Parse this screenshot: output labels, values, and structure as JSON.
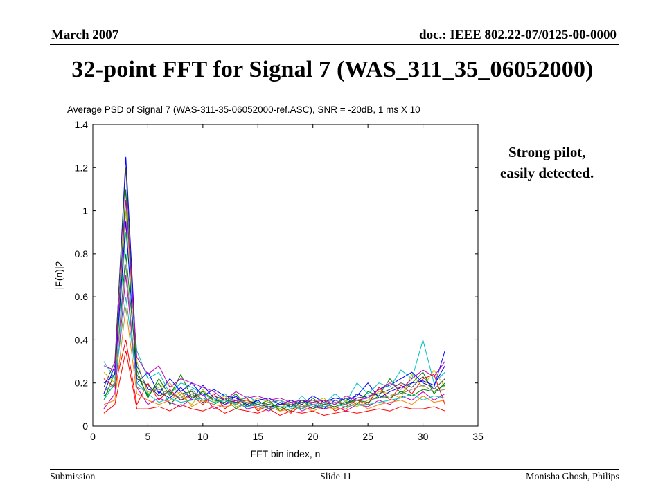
{
  "header": {
    "date": "March 2007",
    "doc": "doc.: IEEE 802.22-07/0125-00-0000"
  },
  "slide_title": "32-point FFT for Signal 7 (WAS_311_35_06052000)",
  "notes": [
    "Strong pilot,",
    "easily detected."
  ],
  "footer": {
    "left": "Submission",
    "center": "Slide 11",
    "right": "Monisha Ghosh, Philips"
  },
  "chart_data": {
    "type": "line",
    "title": "Average PSD of Signal 7 (WAS-311-35-06052000-ref.ASC), SNR = -20dB, 1 ms X 10",
    "xlabel": "FFT bin index, n",
    "ylabel": "|F(n)|2",
    "xlim": [
      0,
      35
    ],
    "ylim": [
      0,
      1.4
    ],
    "xticks": [
      "0",
      "5",
      "10",
      "15",
      "20",
      "25",
      "30",
      "35"
    ],
    "yticks": [
      "0",
      "0.2",
      "0.4",
      "0.6",
      "0.8",
      "1",
      "1.2",
      "1.4"
    ],
    "grid": false,
    "x": [
      1,
      2,
      3,
      4,
      5,
      6,
      7,
      8,
      9,
      10,
      11,
      12,
      13,
      14,
      15,
      16,
      17,
      18,
      19,
      20,
      21,
      22,
      23,
      24,
      25,
      26,
      27,
      28,
      29,
      30,
      31,
      32
    ],
    "series": [
      {
        "color": "#0000ff",
        "values": [
          0.15,
          0.28,
          1.25,
          0.28,
          0.17,
          0.16,
          0.13,
          0.18,
          0.12,
          0.19,
          0.13,
          0.1,
          0.14,
          0.09,
          0.12,
          0.08,
          0.11,
          0.09,
          0.12,
          0.1,
          0.08,
          0.12,
          0.1,
          0.15,
          0.13,
          0.17,
          0.19,
          0.22,
          0.25,
          0.2,
          0.18,
          0.35
        ]
      },
      {
        "color": "#008000",
        "values": [
          0.12,
          0.25,
          1.1,
          0.24,
          0.14,
          0.2,
          0.1,
          0.15,
          0.16,
          0.12,
          0.1,
          0.13,
          0.08,
          0.11,
          0.1,
          0.12,
          0.07,
          0.1,
          0.08,
          0.13,
          0.09,
          0.1,
          0.13,
          0.1,
          0.16,
          0.14,
          0.22,
          0.15,
          0.2,
          0.25,
          0.15,
          0.2
        ]
      },
      {
        "color": "#ff0000",
        "values": [
          0.22,
          0.18,
          0.4,
          0.1,
          0.2,
          0.12,
          0.17,
          0.12,
          0.14,
          0.1,
          0.15,
          0.08,
          0.12,
          0.13,
          0.07,
          0.1,
          0.09,
          0.06,
          0.1,
          0.08,
          0.12,
          0.07,
          0.09,
          0.12,
          0.1,
          0.18,
          0.12,
          0.19,
          0.15,
          0.22,
          0.24,
          0.1
        ]
      },
      {
        "color": "#00bfbf",
        "values": [
          0.3,
          0.22,
          0.9,
          0.35,
          0.22,
          0.25,
          0.15,
          0.2,
          0.18,
          0.15,
          0.12,
          0.15,
          0.1,
          0.14,
          0.11,
          0.1,
          0.12,
          0.08,
          0.14,
          0.09,
          0.1,
          0.15,
          0.11,
          0.2,
          0.15,
          0.2,
          0.18,
          0.26,
          0.22,
          0.4,
          0.2,
          0.25
        ]
      },
      {
        "color": "#bf00bf",
        "values": [
          0.08,
          0.15,
          0.7,
          0.18,
          0.1,
          0.13,
          0.11,
          0.09,
          0.13,
          0.15,
          0.08,
          0.1,
          0.12,
          0.08,
          0.09,
          0.07,
          0.1,
          0.11,
          0.07,
          0.09,
          0.08,
          0.09,
          0.07,
          0.1,
          0.09,
          0.12,
          0.1,
          0.14,
          0.12,
          0.16,
          0.12,
          0.15
        ]
      },
      {
        "color": "#bfbf00",
        "values": [
          0.25,
          0.2,
          1.0,
          0.3,
          0.15,
          0.18,
          0.2,
          0.14,
          0.1,
          0.17,
          0.11,
          0.14,
          0.09,
          0.1,
          0.13,
          0.11,
          0.08,
          0.12,
          0.09,
          0.11,
          0.13,
          0.08,
          0.12,
          0.09,
          0.12,
          0.16,
          0.15,
          0.13,
          0.24,
          0.18,
          0.26,
          0.18
        ]
      },
      {
        "color": "#404040",
        "values": [
          0.18,
          0.3,
          1.2,
          0.22,
          0.19,
          0.14,
          0.16,
          0.12,
          0.15,
          0.11,
          0.14,
          0.12,
          0.11,
          0.12,
          0.1,
          0.09,
          0.1,
          0.1,
          0.11,
          0.12,
          0.1,
          0.11,
          0.1,
          0.13,
          0.14,
          0.15,
          0.17,
          0.2,
          0.18,
          0.23,
          0.17,
          0.22
        ]
      },
      {
        "color": "#ff8000",
        "values": [
          0.1,
          0.12,
          0.55,
          0.15,
          0.12,
          0.1,
          0.12,
          0.16,
          0.09,
          0.12,
          0.1,
          0.09,
          0.1,
          0.12,
          0.08,
          0.09,
          0.07,
          0.08,
          0.09,
          0.07,
          0.09,
          0.08,
          0.08,
          0.11,
          0.08,
          0.1,
          0.11,
          0.12,
          0.1,
          0.14,
          0.11,
          0.12
        ]
      },
      {
        "color": "#0000ff",
        "values": [
          0.2,
          0.24,
          0.95,
          0.2,
          0.25,
          0.15,
          0.22,
          0.16,
          0.2,
          0.14,
          0.17,
          0.14,
          0.13,
          0.1,
          0.12,
          0.13,
          0.1,
          0.12,
          0.1,
          0.14,
          0.11,
          0.13,
          0.12,
          0.14,
          0.2,
          0.13,
          0.16,
          0.18,
          0.2,
          0.21,
          0.19,
          0.28
        ]
      },
      {
        "color": "#008000",
        "values": [
          0.14,
          0.19,
          0.8,
          0.26,
          0.13,
          0.22,
          0.14,
          0.24,
          0.13,
          0.16,
          0.12,
          0.11,
          0.15,
          0.09,
          0.11,
          0.1,
          0.09,
          0.07,
          0.12,
          0.08,
          0.1,
          0.09,
          0.11,
          0.12,
          0.11,
          0.14,
          0.13,
          0.16,
          0.14,
          0.17,
          0.16,
          0.19
        ]
      },
      {
        "color": "#ff0000",
        "values": [
          0.06,
          0.1,
          0.35,
          0.08,
          0.08,
          0.09,
          0.07,
          0.1,
          0.08,
          0.07,
          0.09,
          0.06,
          0.08,
          0.07,
          0.06,
          0.08,
          0.05,
          0.07,
          0.06,
          0.07,
          0.05,
          0.06,
          0.07,
          0.06,
          0.07,
          0.08,
          0.07,
          0.09,
          0.08,
          0.08,
          0.09,
          0.07
        ]
      },
      {
        "color": "#00bfbf",
        "values": [
          0.12,
          0.2,
          0.6,
          0.2,
          0.15,
          0.11,
          0.13,
          0.11,
          0.12,
          0.13,
          0.11,
          0.12,
          0.1,
          0.09,
          0.1,
          0.08,
          0.09,
          0.09,
          0.08,
          0.1,
          0.09,
          0.1,
          0.09,
          0.1,
          0.1,
          0.11,
          0.12,
          0.13,
          0.15,
          0.12,
          0.14,
          0.13
        ]
      },
      {
        "color": "#bf00bf",
        "values": [
          0.28,
          0.26,
          1.05,
          0.32,
          0.24,
          0.28,
          0.18,
          0.22,
          0.2,
          0.18,
          0.16,
          0.12,
          0.16,
          0.13,
          0.14,
          0.12,
          0.13,
          0.11,
          0.12,
          0.11,
          0.12,
          0.1,
          0.14,
          0.12,
          0.13,
          0.17,
          0.2,
          0.17,
          0.22,
          0.26,
          0.23,
          0.3
        ]
      },
      {
        "color": "#808080",
        "values": [
          0.16,
          0.2,
          0.75,
          0.18,
          0.16,
          0.17,
          0.15,
          0.13,
          0.17,
          0.12,
          0.13,
          0.13,
          0.12,
          0.11,
          0.09,
          0.11,
          0.12,
          0.1,
          0.09,
          0.1,
          0.11,
          0.12,
          0.1,
          0.12,
          0.12,
          0.13,
          0.14,
          0.15,
          0.17,
          0.19,
          0.16,
          0.17
        ]
      }
    ]
  }
}
